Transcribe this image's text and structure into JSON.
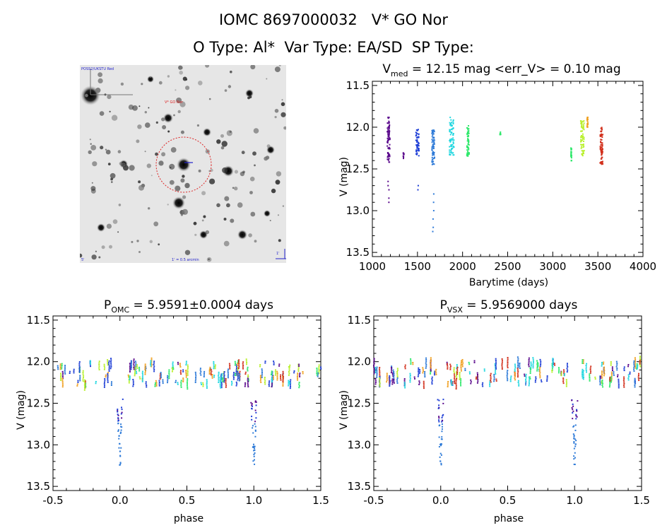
{
  "header": {
    "line1": "IOMC 8697000032   V* GO Nor",
    "line2": "O Type: Al*  Var Type: EA/SD  SP Type:"
  },
  "finder": {
    "top_left_text": "POSS2/UKSTU Red",
    "target_text": "V* GO Nor",
    "bottom_left_text": "5'",
    "bottom_center_text": "1' = 0.5 arcmin",
    "scale_text": "1'"
  },
  "colors": {
    "seasons": [
      "#5b0a8c",
      "#1f3fd6",
      "#2f7bd8",
      "#22d7e0",
      "#2ee86b",
      "#b8f02a",
      "#f0a020",
      "#d2301c"
    ],
    "finder_circle": "#dd2222",
    "background": "#ffffff"
  },
  "chart_data": [
    {
      "type": "scatter",
      "id": "lightcurve",
      "title_main": "V",
      "title_sub": "med",
      "title_rest": " = 12.15 mag <err_V> = 0.10 mag",
      "xlabel": "Barytime (days)",
      "ylabel": "V (mag)",
      "xlim": [
        1000,
        4000
      ],
      "ylim": [
        13.55,
        11.45
      ],
      "xticks": [
        1000,
        1500,
        2000,
        2500,
        3000,
        3500,
        4000
      ],
      "yticks": [
        11.5,
        12.0,
        12.5,
        13.0,
        13.5
      ],
      "xticks_label": [
        "1000",
        "1500",
        "2000",
        "2500",
        "3000",
        "3500",
        "4000"
      ],
      "yticks_label": [
        "11.5",
        "12.0",
        "12.5",
        "13.0",
        "13.5"
      ],
      "segments": [
        {
          "color": "#5b0a8c",
          "x": 1180,
          "width": 30,
          "ymin": 11.88,
          "ymax": 12.42,
          "outliers": [
            12.65,
            12.7,
            12.75,
            12.85,
            12.9
          ]
        },
        {
          "color": "#5b0a8c",
          "x": 1345,
          "width": 10,
          "ymin": 12.3,
          "ymax": 12.38,
          "outliers": []
        },
        {
          "color": "#1f3fd6",
          "x": 1500,
          "width": 35,
          "ymin": 12.02,
          "ymax": 12.35,
          "outliers": [
            12.7,
            12.75
          ]
        },
        {
          "color": "#2f7bd8",
          "x": 1675,
          "width": 30,
          "ymin": 12.03,
          "ymax": 12.45,
          "outliers": [
            12.8,
            12.9,
            13.0,
            13.1,
            13.2,
            13.25
          ]
        },
        {
          "color": "#22d7e0",
          "x": 1880,
          "width": 50,
          "ymin": 11.88,
          "ymax": 12.35,
          "outliers": []
        },
        {
          "color": "#2ee86b",
          "x": 2060,
          "width": 25,
          "ymin": 11.98,
          "ymax": 12.35,
          "outliers": []
        },
        {
          "color": "#2ee86b",
          "x": 2420,
          "width": 12,
          "ymin": 12.05,
          "ymax": 12.09,
          "outliers": []
        },
        {
          "color": "#2ee86b",
          "x": 3205,
          "width": 8,
          "ymin": 12.25,
          "ymax": 12.42,
          "outliers": []
        },
        {
          "color": "#b8f02a",
          "x": 3330,
          "width": 40,
          "ymin": 11.92,
          "ymax": 12.35,
          "outliers": []
        },
        {
          "color": "#f0a020",
          "x": 3385,
          "width": 10,
          "ymin": 11.88,
          "ymax": 12.0,
          "outliers": []
        },
        {
          "color": "#d2301c",
          "x": 3540,
          "width": 30,
          "ymin": 12.0,
          "ymax": 12.46,
          "outliers": []
        }
      ]
    },
    {
      "type": "scatter",
      "id": "phase-omc",
      "title_main": "P",
      "title_sub": "OMC",
      "title_rest": " = 5.9591±0.0004 days",
      "xlabel": "phase",
      "ylabel": "V (mag)",
      "xlim": [
        -0.5,
        1.5
      ],
      "ylim": [
        13.55,
        11.45
      ],
      "xticks": [
        -0.5,
        0.0,
        0.5,
        1.0,
        1.5
      ],
      "yticks": [
        11.5,
        12.0,
        12.5,
        13.0,
        13.5
      ],
      "xticks_label": [
        "-0.5",
        "0.0",
        "0.5",
        "1.0",
        "1.5"
      ],
      "yticks_label": [
        "11.5",
        "12.0",
        "12.5",
        "13.0",
        "13.5"
      ],
      "baseline_mag": 12.15,
      "baseline_spread": 0.22,
      "eclipse_phases": [
        0.0,
        1.0
      ],
      "eclipse_depth_mag": 13.25,
      "eclipse_halfwidth": 0.035
    },
    {
      "type": "scatter",
      "id": "phase-vsx",
      "title_main": "P",
      "title_sub": "VSX",
      "title_rest": " = 5.9569000 days",
      "xlabel": "phase",
      "ylabel": "V (mag)",
      "xlim": [
        -0.5,
        1.5
      ],
      "ylim": [
        13.55,
        11.45
      ],
      "xticks": [
        -0.5,
        0.0,
        0.5,
        1.0,
        1.5
      ],
      "yticks": [
        11.5,
        12.0,
        12.5,
        13.0,
        13.5
      ],
      "xticks_label": [
        "-0.5",
        "0.0",
        "0.5",
        "1.0",
        "1.5"
      ],
      "yticks_label": [
        "11.5",
        "12.0",
        "12.5",
        "13.0",
        "13.5"
      ],
      "baseline_mag": 12.15,
      "baseline_spread": 0.22,
      "eclipse_phases": [
        0.0,
        1.0
      ],
      "eclipse_depth_mag": 13.25,
      "eclipse_halfwidth": 0.035
    }
  ]
}
